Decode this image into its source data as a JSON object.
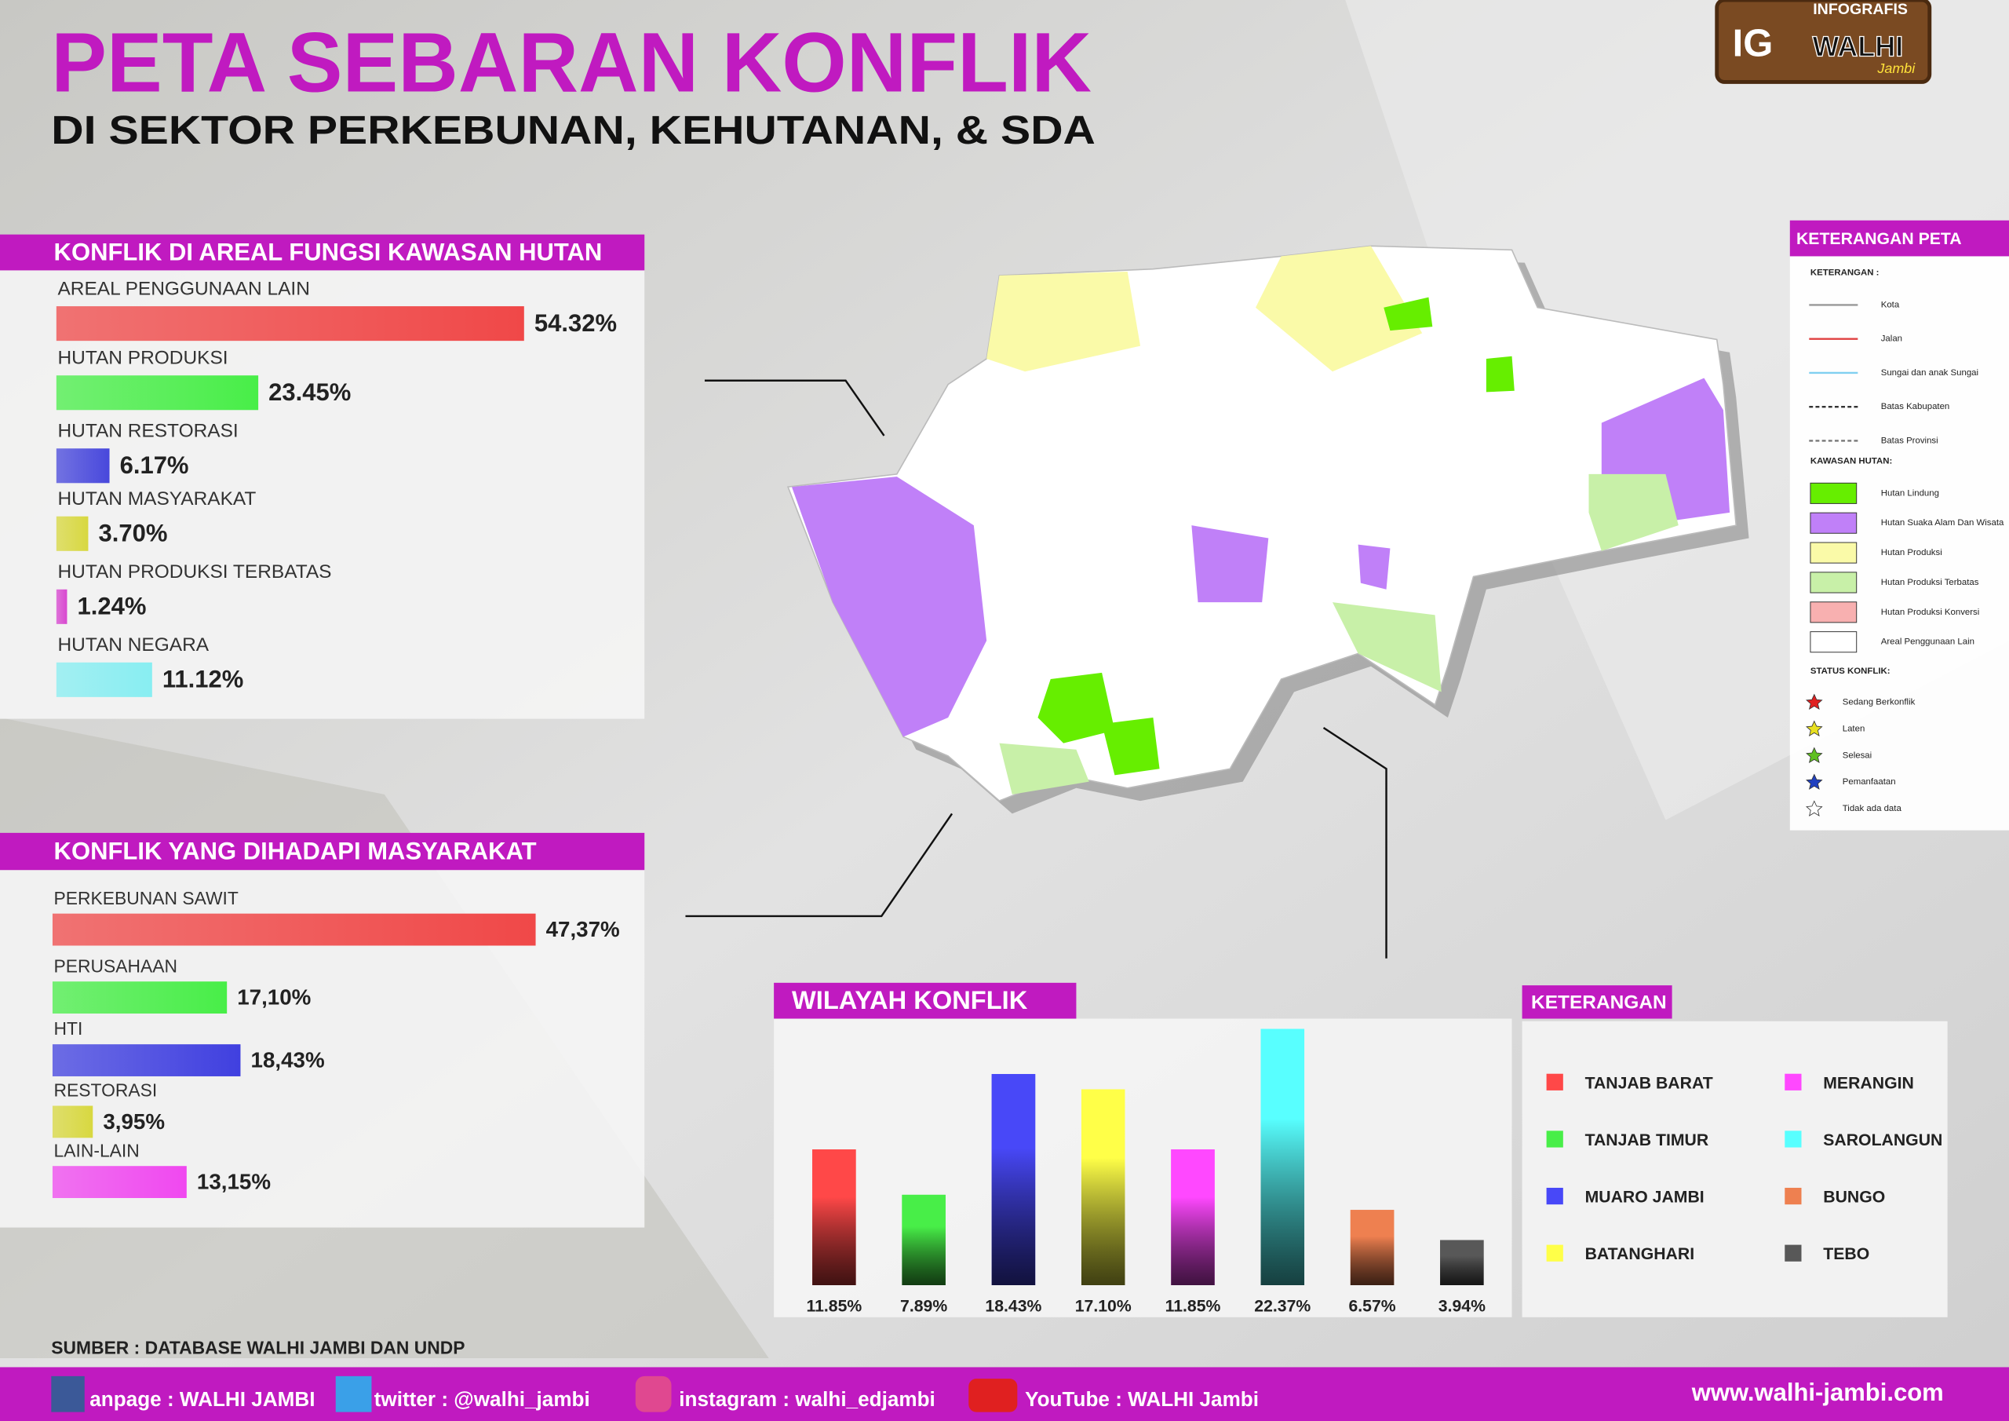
{
  "header": {
    "title": "PETA SEBARAN KONFLIK",
    "subtitle": "DI SEKTOR PERKEBUNAN, KEHUTANAN, & SDA"
  },
  "logo": {
    "top": "INFOGRAFIS",
    "mark": "IG",
    "name": "WALHI",
    "region": "Jambi"
  },
  "chart_data": [
    {
      "type": "bar",
      "orientation": "horizontal",
      "title": "KONFLIK DI AREAL FUNGSI KAWASAN HUTAN",
      "categories": [
        "AREAL PENGGUNAAN LAIN",
        "HUTAN PRODUKSI",
        "HUTAN RESTORASI",
        "HUTAN MASYARAKAT",
        "HUTAN PRODUKSI TERBATAS",
        "HUTAN NEGARA"
      ],
      "values": [
        54.32,
        23.45,
        6.17,
        3.7,
        1.24,
        11.12
      ],
      "value_labels": [
        "54.32%",
        "23.45%",
        "6.17%",
        "3.70%",
        "1.24%",
        "11.12%"
      ],
      "colors": [
        "#f04848",
        "#48ee48",
        "#4848dc",
        "#d8d840",
        "#d848d0",
        "#88eef2"
      ]
    },
    {
      "type": "bar",
      "orientation": "horizontal",
      "title": "KONFLIK YANG DIHADAPI MASYARAKAT",
      "categories": [
        "PERKEBUNAN SAWIT",
        "PERUSAHAAN",
        "HTI",
        "RESTORASI",
        "LAIN-LAIN"
      ],
      "values": [
        47.37,
        17.1,
        18.43,
        3.95,
        13.15
      ],
      "value_labels": [
        "47,37%",
        "17,10%",
        "18,43%",
        "3,95%",
        "13,15%"
      ],
      "colors": [
        "#f04848",
        "#48ee48",
        "#4040e0",
        "#d8d840",
        "#f048f0"
      ]
    },
    {
      "type": "bar",
      "orientation": "vertical",
      "title": "WILAYAH KONFLIK",
      "legend_title": "KETERANGAN",
      "categories": [
        "TANJAB BARAT",
        "TANJAB TIMUR",
        "MUARO JAMBI",
        "BATANGHARI",
        "MERANGIN",
        "SAROLANGUN",
        "BUNGO",
        "TEBO"
      ],
      "values": [
        11.85,
        7.89,
        18.43,
        17.1,
        11.85,
        22.37,
        6.57,
        3.94
      ],
      "value_labels": [
        "11.85%",
        "7.89%",
        "18.43%",
        "17.10%",
        "11.85%",
        "22.37%",
        "6.57%",
        "3.94%"
      ],
      "colors": [
        "#ff4848",
        "#48ee48",
        "#4848f8",
        "#ffff48",
        "#ff48ff",
        "#58ffff",
        "#ee8050",
        "#585858"
      ]
    }
  ],
  "map_legend": {
    "title": "KETERANGAN PETA",
    "sections": [
      {
        "heading": "KETERANGAN :",
        "symbol": "line",
        "items": [
          {
            "label": "Kota",
            "color": "#999999"
          },
          {
            "label": "Jalan",
            "color": "#e04040"
          },
          {
            "label": "Sungai dan anak Sungai",
            "color": "#80d0f0"
          },
          {
            "label": "Batas Kabupaten",
            "color": "#333333"
          },
          {
            "label": "Batas Provinsi",
            "color": "#777777"
          }
        ]
      },
      {
        "heading": "KAWASAN HUTAN:",
        "symbol": "swatch",
        "items": [
          {
            "label": "Hutan Lindung",
            "color": "#66ee00"
          },
          {
            "label": "Hutan Suaka Alam Dan Wisata",
            "color": "#c080f8"
          },
          {
            "label": "Hutan Produksi",
            "color": "#fafaa8"
          },
          {
            "label": "Hutan Produksi Terbatas",
            "color": "#c8f0a8"
          },
          {
            "label": "Hutan Produksi Konversi",
            "color": "#f8b0b0"
          },
          {
            "label": "Areal Penggunaan Lain",
            "color": "#ffffff"
          }
        ]
      },
      {
        "heading": "STATUS KONFLIK:",
        "symbol": "star",
        "items": [
          {
            "label": "Sedang Berkonflik",
            "color": "#e02020"
          },
          {
            "label": "Laten",
            "color": "#e8e020"
          },
          {
            "label": "Selesai",
            "color": "#60c020"
          },
          {
            "label": "Pemanfaatan",
            "color": "#2040c0"
          },
          {
            "label": "Tidak ada data",
            "color": "#ffffff"
          }
        ]
      }
    ]
  },
  "source": "SUMBER : DATABASE WALHI JAMBI DAN UNDP",
  "footer": {
    "facebook": "anpage : WALHI JAMBI",
    "twitter": "twitter : @walhi_jambi",
    "instagram": "instagram : walhi_edjambi",
    "youtube": "YouTube : WALHI Jambi",
    "website": "www.walhi-jambi.com"
  }
}
